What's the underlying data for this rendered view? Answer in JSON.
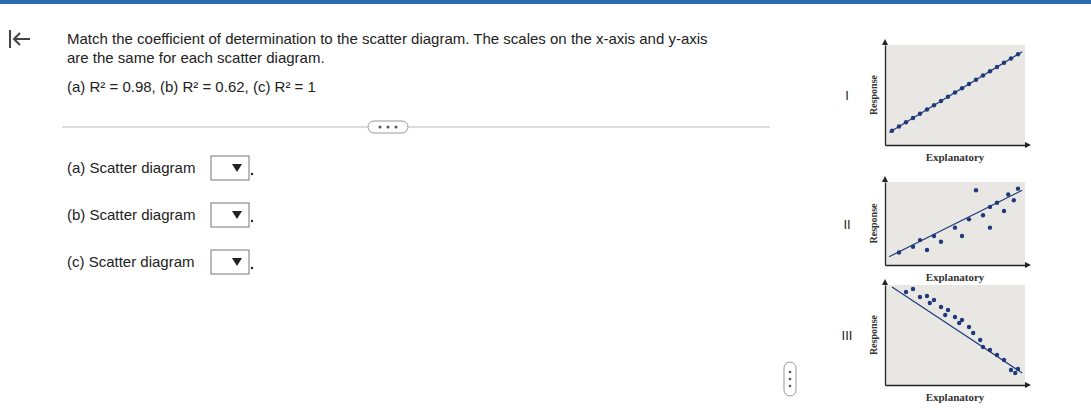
{
  "question": {
    "lines": [
      "Match the coefficient of determination to the scatter diagram. The scales on the x-axis and y-axis",
      "are the same for each scatter diagram."
    ],
    "options": "(a) R² = 0.98, (b) R² = 0.62, (c) R² = 1",
    "answers": [
      "(a) Scatter diagram",
      "(b) Scatter diagram",
      "(c) Scatter diagram"
    ]
  },
  "chart_data": [
    {
      "type": "scatter",
      "label": "I",
      "x_label": "Explanatory",
      "y_label": "Response",
      "xlim": [
        0,
        10
      ],
      "ylim": [
        0,
        10
      ],
      "tick_labels": false,
      "color": "#1f3a7a",
      "series": [
        {
          "type": "scatter",
          "x": [
            0.5,
            1,
            1.5,
            2,
            2.5,
            3,
            3.5,
            4,
            4.5,
            5,
            5.5,
            6,
            6.5,
            7,
            7.5,
            8,
            8.5,
            9,
            9.5
          ],
          "values": [
            1.43,
            1.85,
            2.28,
            2.7,
            3.13,
            3.55,
            3.98,
            4.4,
            4.83,
            5.25,
            5.68,
            6.1,
            6.53,
            6.95,
            7.38,
            7.8,
            8.23,
            8.65,
            9.08
          ]
        },
        {
          "type": "line",
          "x": [
            0.3,
            9.8
          ],
          "values": [
            1.26,
            9.33
          ]
        }
      ]
    },
    {
      "type": "scatter",
      "label": "II",
      "x_label": "Explanatory",
      "y_label": "Response",
      "xlim": [
        0,
        10
      ],
      "ylim": [
        0,
        10
      ],
      "tick_labels": false,
      "color": "#1f3a7a",
      "series": [
        {
          "type": "scatter",
          "x": [
            1,
            2,
            2.5,
            3,
            3.5,
            4,
            5,
            5.5,
            6,
            6.5,
            7,
            7.5,
            7.5,
            8,
            8.5,
            8.8,
            9.2,
            9.5
          ],
          "values": [
            1.5,
            2.2,
            3,
            1.8,
            3.5,
            2.8,
            4.5,
            3.5,
            5.5,
            9,
            6,
            4.5,
            7,
            7.5,
            6.5,
            8.5,
            7.8,
            9.2
          ]
        },
        {
          "type": "line",
          "x": [
            0.3,
            9.8
          ],
          "values": [
            1,
            9
          ]
        }
      ]
    },
    {
      "type": "scatter",
      "label": "III",
      "x_label": "Explanatory",
      "y_label": "Response",
      "xlim": [
        0,
        10
      ],
      "ylim": [
        0,
        10
      ],
      "tick_labels": false,
      "color": "#1f3a7a",
      "series": [
        {
          "type": "scatter",
          "x": [
            1.5,
            2,
            2.5,
            3,
            3.2,
            3.5,
            4,
            4.3,
            4.5,
            5,
            5.3,
            5.5,
            6,
            6.3,
            6.8,
            7,
            7.5,
            8,
            8.5,
            9,
            9.3,
            9.5
          ],
          "values": [
            9.3,
            9.6,
            8.8,
            8.9,
            8.2,
            8.5,
            7.8,
            7,
            7.5,
            6.8,
            6.2,
            6.5,
            5.8,
            5.2,
            4.5,
            3.8,
            3.5,
            3,
            2.5,
            1.5,
            1.2,
            1.6
          ]
        },
        {
          "type": "line",
          "x": [
            0.5,
            9.8
          ],
          "values": [
            9.8,
            1.2
          ]
        }
      ]
    }
  ]
}
